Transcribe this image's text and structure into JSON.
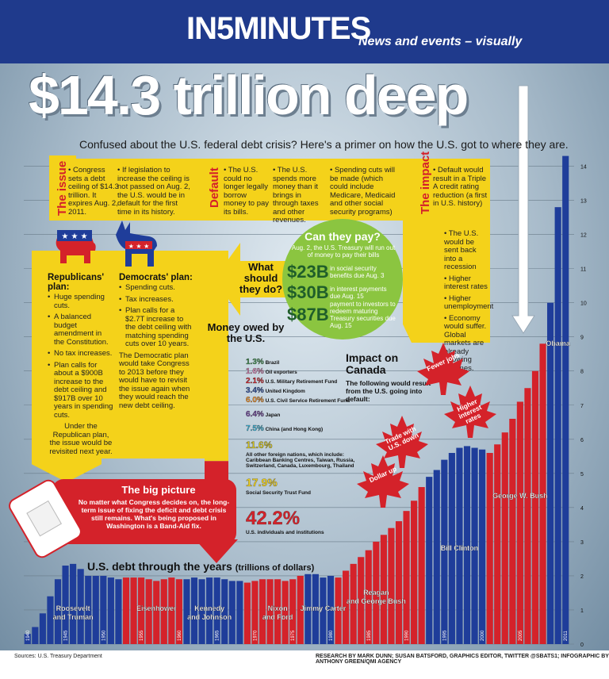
{
  "header": {
    "brand": "IN5MINUTES",
    "tagline": "News and events – visually"
  },
  "headline": "$14.3 trillion deep",
  "subhead": "Confused about the U.S. federal debt crisis? Here's a primer on how the U.S. got to where they are.",
  "issue": {
    "label": "The issue",
    "col1": "Congress sets a debt ceiling of $14.3 trillion. It expires Aug. 2, 2011.",
    "col2": "If legislation to increase the ceiling is not passed on Aug. 2, the U.S. would be in default for the first time in its history."
  },
  "default": {
    "label": "Default",
    "col1": "The U.S. could no longer legally borrow money to pay its bills.",
    "col2": "The U.S. spends more money than it brings in through taxes and other revenues.",
    "col3": "Spending cuts will be made (which could include Medicare, Medicaid and other social security programs)"
  },
  "impact": {
    "label": "The impact",
    "intro": "Default would result in a Triple A credit rating reduction (a first in U.S. history)",
    "items": [
      "The U.S. would be sent back into a recession",
      "Higher interest rates",
      "Higher unemployment",
      "Economy would suffer. Global markets are already showing declines."
    ]
  },
  "can_they_pay": {
    "title": "Can they pay?",
    "intro": "Aug. 2, the U.S. Treasury will run out of money to pay their bills",
    "items": [
      {
        "amount": "$23B",
        "desc": "in social security benefits due Aug. 3"
      },
      {
        "amount": "$30B",
        "desc": "in interest payments due Aug. 15"
      },
      {
        "amount": "$87B",
        "desc": "payment to investors to redeem maturing Treasury securities due Aug. 15"
      }
    ]
  },
  "what_should": "What should they do?",
  "republicans": {
    "title": "Republicans' plan:",
    "items": [
      "Huge spending cuts.",
      "A balanced budget amendment in the Constitution.",
      "No tax increases.",
      "Plan calls for about a $900B increase to the debt ceiling and $917B over 10 years in spending cuts."
    ],
    "footer": "Under the Republican plan, the issue would be revisited next year."
  },
  "democrats": {
    "title": "Democrats' plan:",
    "items": [
      "Spending cuts.",
      "Tax increases.",
      "Plan calls for a $2.7T increase to the debt ceiling with matching spending cuts over 10 years."
    ],
    "footer": "The Democratic plan would take Congress to 2013 before they would have to revisit the issue again when they would reach the new debt ceiling."
  },
  "big_picture": {
    "title": "The big picture",
    "text": "No matter what Congress decides on, the long-term issue of fixing the deficit and debt crisis still remains. What's being proposed in Washington is a Band-Aid fix."
  },
  "money_owed": {
    "title": "Money owed by the U.S.",
    "items": [
      {
        "pct": "1.3%",
        "label": "Brazil",
        "value": 1.3,
        "color": "#3f8f50"
      },
      {
        "pct": "1.6%",
        "label": "Oil exporters",
        "value": 1.6,
        "color": "#d680b0"
      },
      {
        "pct": "2.1%",
        "label": "U.S. Military Retirement Fund",
        "value": 2.1,
        "color": "#d4222a"
      },
      {
        "pct": "3.4%",
        "label": "United Kingdom",
        "value": 3.4,
        "color": "#2d4ea0"
      },
      {
        "pct": "6.0%",
        "label": "U.S. Civil Service Retirement Fund",
        "value": 6.0,
        "color": "#f08a1c"
      },
      {
        "pct": "6.4%",
        "label": "Japan",
        "value": 6.4,
        "color": "#6c3f98"
      },
      {
        "pct": "7.5%",
        "label": "China (and Hong Kong)",
        "value": 7.5,
        "color": "#35b3d8"
      },
      {
        "pct": "11.6%",
        "label": "All other foreign nations, which include: Caribbean Banking Centres, Taiwan, Russia, Switzerland, Canada, Luxembourg, Thailand",
        "value": 11.6,
        "color": "#d4c41a"
      },
      {
        "pct": "17.9%",
        "label": "Social Security Trust Fund",
        "value": 17.9,
        "color": "#f2d21a"
      },
      {
        "pct": "42.2%",
        "label": "U.S. individuals and institutions",
        "value": 42.2,
        "color": "#d4222a"
      }
    ]
  },
  "impact_canada": {
    "title": "Impact on Canada",
    "intro": "The following would result from the U.S. going into default:",
    "leaves": [
      "Fewer jobs",
      "Higher interest rates",
      "Trade with U.S. down",
      "Dollar up"
    ]
  },
  "chart_title": "U.S. debt through the years",
  "chart_unit": "(trillions of dollars)",
  "chart_data": {
    "type": "bar",
    "title": "U.S. debt through the years (trillions of dollars)",
    "x": [
      1940,
      1941,
      1942,
      1943,
      1944,
      1945,
      1946,
      1947,
      1948,
      1949,
      1950,
      1951,
      1952,
      1953,
      1954,
      1955,
      1956,
      1957,
      1958,
      1959,
      1960,
      1961,
      1962,
      1963,
      1964,
      1965,
      1966,
      1967,
      1968,
      1969,
      1970,
      1971,
      1972,
      1973,
      1974,
      1975,
      1976,
      1977,
      1978,
      1979,
      1980,
      1981,
      1982,
      1983,
      1984,
      1985,
      1986,
      1987,
      1988,
      1989,
      1990,
      1991,
      1992,
      1993,
      1994,
      1995,
      1996,
      1997,
      1998,
      1999,
      2000,
      2001,
      2002,
      2003,
      2004,
      2005,
      2006,
      2007,
      2008,
      2009,
      2010,
      2011
    ],
    "values": [
      0.3,
      0.5,
      0.9,
      1.4,
      1.9,
      2.3,
      2.35,
      2.2,
      2.0,
      2.0,
      2.0,
      1.95,
      1.9,
      1.95,
      1.95,
      1.95,
      1.9,
      1.85,
      1.9,
      1.95,
      1.9,
      1.9,
      1.95,
      1.9,
      1.95,
      1.95,
      1.9,
      1.85,
      1.85,
      1.8,
      1.85,
      1.9,
      1.9,
      1.9,
      1.85,
      1.9,
      2.0,
      2.05,
      2.05,
      1.95,
      2.0,
      1.95,
      2.15,
      2.35,
      2.55,
      2.75,
      3.0,
      3.2,
      3.4,
      3.6,
      3.9,
      4.2,
      4.6,
      4.9,
      5.1,
      5.4,
      5.6,
      5.75,
      5.8,
      5.75,
      5.7,
      5.6,
      5.85,
      6.2,
      6.6,
      7.1,
      7.5,
      8.0,
      8.8,
      10.0,
      12.8,
      14.3
    ],
    "party": [
      "D",
      "D",
      "D",
      "D",
      "D",
      "D",
      "D",
      "D",
      "D",
      "D",
      "D",
      "D",
      "D",
      "R",
      "R",
      "R",
      "R",
      "R",
      "R",
      "R",
      "R",
      "D",
      "D",
      "D",
      "D",
      "D",
      "D",
      "D",
      "D",
      "R",
      "R",
      "R",
      "R",
      "R",
      "R",
      "R",
      "R",
      "D",
      "D",
      "D",
      "D",
      "R",
      "R",
      "R",
      "R",
      "R",
      "R",
      "R",
      "R",
      "R",
      "R",
      "R",
      "R",
      "D",
      "D",
      "D",
      "D",
      "D",
      "D",
      "D",
      "D",
      "R",
      "R",
      "R",
      "R",
      "R",
      "R",
      "R",
      "R",
      "D",
      "D",
      "D"
    ],
    "presidents": [
      {
        "label": "Roosevelt and Truman",
        "mid": 1946
      },
      {
        "label": "Eisenhower",
        "mid": 1957
      },
      {
        "label": "Kennedy and Johnson",
        "mid": 1964
      },
      {
        "label": "Nixon and Ford",
        "mid": 1973
      },
      {
        "label": "Jimmy Carter",
        "mid": 1979
      },
      {
        "label": "Reagan and George Bush",
        "mid": 1986
      },
      {
        "label": "Bill Clinton",
        "mid": 1997
      },
      {
        "label": "George W. Bush",
        "mid": 2005
      },
      {
        "label": "Obama",
        "mid": 2010
      }
    ],
    "tick_years": [
      "1940",
      "1945",
      "1950",
      "1955",
      "1960",
      "1965",
      "1970",
      "1975",
      "1980",
      "1985",
      "1990",
      "1995",
      "2000",
      "2005",
      "2011"
    ],
    "ylim": [
      0,
      14.5
    ],
    "yticks": [
      "0",
      "1",
      "2",
      "3",
      "4",
      "5",
      "6",
      "7",
      "8",
      "9",
      "10",
      "11",
      "12",
      "13",
      "14"
    ],
    "colors": {
      "D": "#1f3d9a",
      "R": "#d4222a"
    }
  },
  "footer": {
    "source": "Sources: U.S. Treasury Department",
    "credits": "RESEARCH BY MARK DUNN; SUSAN BATSFORD, GRAPHICS EDITOR, TWITTER @SBATS1; INFOGRAPHIC BY ANTHONY GREEN/QMI AGENCY"
  }
}
